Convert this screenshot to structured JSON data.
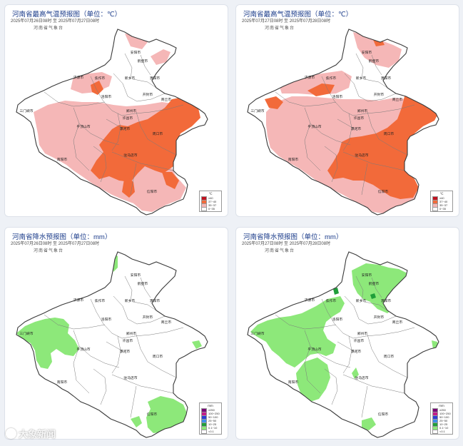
{
  "panels": [
    {
      "title": "河南省最高气温预报图（单位：℃）",
      "date_range": "2025年07月26日08时 至 2025年07月27日08时",
      "agency": "河南省气象台",
      "map_type": "temperature",
      "legend": {
        "unit": "℃",
        "items": [
          {
            "label": "≥40",
            "color": "#c1121f"
          },
          {
            "label": "37~40",
            "color": "#f26a3a"
          },
          {
            "label": "35~37",
            "color": "#f5b7b7"
          },
          {
            "label": "0~35",
            "color": "#ffffff"
          }
        ]
      }
    },
    {
      "title": "河南省最高气温预报图（单位：℃）",
      "date_range": "2025年07月27日08时 至 2025年07月28日08时",
      "agency": "河南省气象台",
      "map_type": "temperature",
      "legend": {
        "unit": "℃",
        "items": [
          {
            "label": "≥40",
            "color": "#c1121f"
          },
          {
            "label": "37~40",
            "color": "#f26a3a"
          },
          {
            "label": "35~37",
            "color": "#f5b7b7"
          },
          {
            "label": "0~35",
            "color": "#ffffff"
          }
        ]
      }
    },
    {
      "title": "河南省降水预报图（单位：mm）",
      "date_range": "2025年07月26日08时 至 2025年07月27日08时",
      "agency": "河南省气象台",
      "map_type": "precipitation",
      "legend": {
        "unit": "mm",
        "items": [
          {
            "label": "≥250",
            "color": "#7a0177"
          },
          {
            "label": "100~250",
            "color": "#c51b8a"
          },
          {
            "label": "50~100",
            "color": "#2c3cd6"
          },
          {
            "label": "25~50",
            "color": "#3f8fe8"
          },
          {
            "label": "10~25",
            "color": "#1f9e3a"
          },
          {
            "label": "0.1~10",
            "color": "#8de87a"
          },
          {
            "label": "<0.1",
            "color": "#ffffff"
          }
        ]
      }
    },
    {
      "title": "河南省降水预报图（单位：mm）",
      "date_range": "2025年07月27日08时 至 2025年07月28日08时",
      "agency": "河南省气象台",
      "map_type": "precipitation",
      "legend": {
        "unit": "mm",
        "items": [
          {
            "label": "≥250",
            "color": "#7a0177"
          },
          {
            "label": "100~250",
            "color": "#c51b8a"
          },
          {
            "label": "50~100",
            "color": "#2c3cd6"
          },
          {
            "label": "25~50",
            "color": "#3f8fe8"
          },
          {
            "label": "10~25",
            "color": "#1f9e3a"
          },
          {
            "label": "0.1~10",
            "color": "#8de87a"
          },
          {
            "label": "<0.1",
            "color": "#ffffff"
          }
        ]
      }
    }
  ],
  "cities": [
    {
      "name": "安阳市"
    },
    {
      "name": "鹤壁市"
    },
    {
      "name": "濮阳市"
    },
    {
      "name": "新乡市"
    },
    {
      "name": "焦作市"
    },
    {
      "name": "济源市"
    },
    {
      "name": "三门峡市"
    },
    {
      "name": "洛阳市"
    },
    {
      "name": "郑州市"
    },
    {
      "name": "开封市"
    },
    {
      "name": "商丘市"
    },
    {
      "name": "平顶山市"
    },
    {
      "name": "许昌市"
    },
    {
      "name": "漯河市"
    },
    {
      "name": "周口市"
    },
    {
      "name": "南阳市"
    },
    {
      "name": "驻马店市"
    },
    {
      "name": "信阳市"
    }
  ],
  "watermark": "大象新闻"
}
